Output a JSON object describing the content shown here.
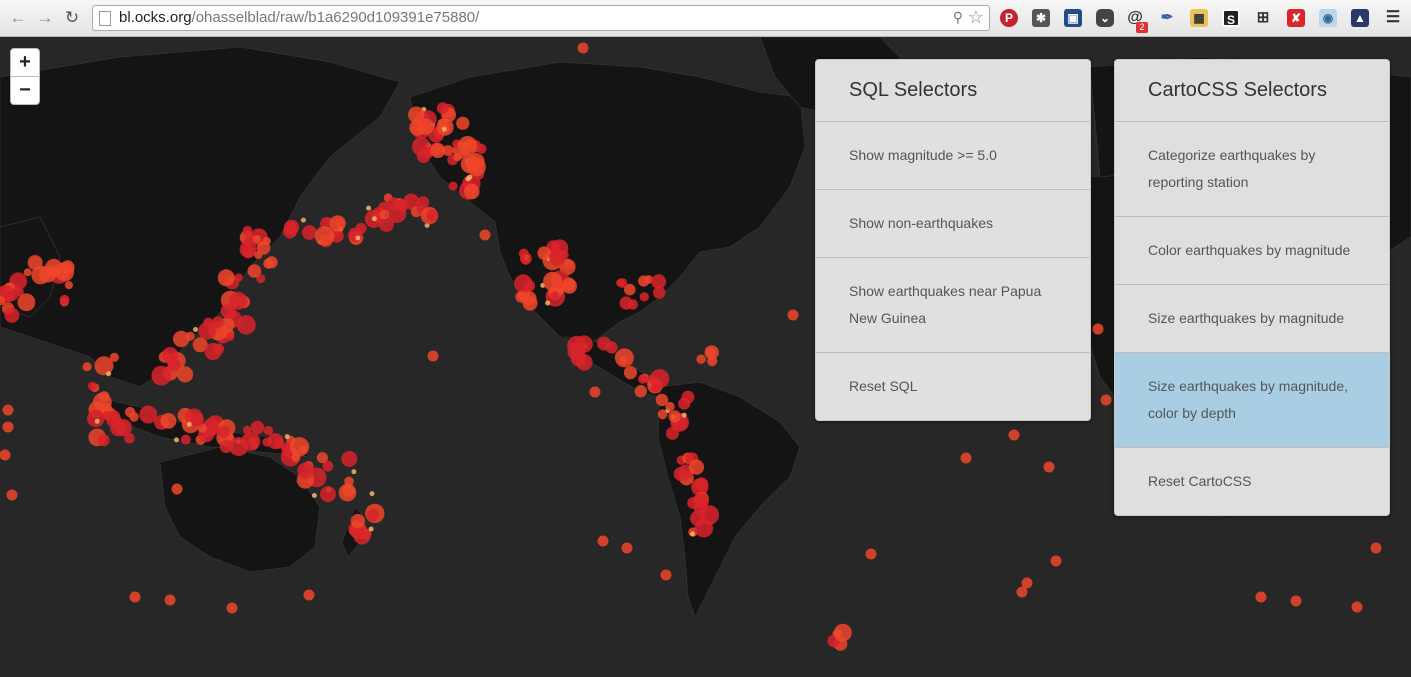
{
  "browser": {
    "url_host": "bl.ocks.org",
    "url_path": "/ohasselblad/raw/b1a6290d109391e75880/",
    "extension_badge": "2"
  },
  "map": {
    "zoom_in_label": "+",
    "zoom_out_label": "−",
    "sql_panel": {
      "title": "SQL Selectors",
      "items": [
        "Show magnitude >= 5.0",
        "Show non-earthquakes",
        "Show earthquakes near Papua New Guinea",
        "Reset SQL"
      ]
    },
    "cartocss_panel": {
      "title": "CartoCSS Selectors",
      "items": [
        "Categorize earthquakes by reporting station",
        "Color earthquakes by magnitude",
        "Size earthquakes by magnitude",
        "Size earthquakes by magnitude, color by depth",
        "Reset CartoCSS"
      ],
      "active_index": 3
    },
    "colors": {
      "ocean": "#272727",
      "land": "#141414",
      "quake_red": "#d9232a",
      "quake_orange": "#f0472a",
      "quake_yellow": "#f7b56a",
      "active_item": "#a9cee3"
    }
  }
}
